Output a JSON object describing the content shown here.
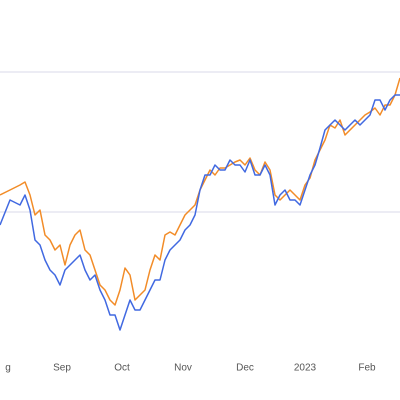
{
  "chart_data": {
    "type": "line",
    "x": [
      0,
      10,
      20,
      25,
      30,
      35,
      40,
      45,
      50,
      55,
      60,
      65,
      70,
      75,
      80,
      85,
      90,
      95,
      100,
      105,
      110,
      115,
      120,
      125,
      130,
      135,
      140,
      145,
      150,
      155,
      160,
      165,
      170,
      175,
      180,
      185,
      190,
      195,
      200,
      205,
      210,
      215,
      220,
      225,
      230,
      235,
      240,
      245,
      250,
      255,
      260,
      265,
      270,
      275,
      280,
      285,
      290,
      295,
      300,
      305,
      310,
      315,
      320,
      325,
      330,
      335,
      340,
      345,
      350,
      355,
      360,
      365,
      370,
      375,
      380,
      385,
      390,
      395,
      400
    ],
    "series": [
      {
        "color": "#f28c28",
        "values": [
          205,
          210,
          215,
          218,
          205,
          185,
          190,
          165,
          160,
          150,
          155,
          135,
          155,
          165,
          170,
          150,
          145,
          130,
          115,
          110,
          100,
          95,
          110,
          132,
          125,
          100,
          105,
          110,
          130,
          145,
          140,
          165,
          168,
          165,
          175,
          185,
          190,
          195,
          210,
          220,
          230,
          225,
          232,
          232,
          235,
          238,
          240,
          235,
          242,
          230,
          225,
          238,
          230,
          205,
          200,
          205,
          210,
          205,
          200,
          215,
          222,
          240,
          250,
          260,
          275,
          272,
          280,
          265,
          270,
          275,
          280,
          285,
          288,
          292,
          285,
          295,
          295,
          305,
          322
        ]
      },
      {
        "color": "#4169e1",
        "values": [
          175,
          200,
          195,
          205,
          190,
          160,
          155,
          140,
          130,
          125,
          115,
          130,
          135,
          140,
          145,
          130,
          120,
          125,
          110,
          100,
          85,
          85,
          70,
          85,
          100,
          90,
          90,
          100,
          110,
          120,
          120,
          140,
          150,
          155,
          160,
          170,
          175,
          185,
          210,
          225,
          225,
          235,
          230,
          230,
          240,
          235,
          235,
          228,
          240,
          225,
          225,
          235,
          225,
          195,
          205,
          210,
          200,
          200,
          195,
          210,
          225,
          235,
          252,
          270,
          275,
          280,
          275,
          270,
          275,
          280,
          275,
          280,
          285,
          300,
          300,
          290,
          300,
          305,
          305
        ]
      }
    ],
    "xlim": [
      0,
      400
    ],
    "ylim": [
      0,
      400
    ],
    "xticks": [
      {
        "value": 8,
        "label": "g"
      },
      {
        "value": 62,
        "label": "Sep"
      },
      {
        "value": 122,
        "label": "Oct"
      },
      {
        "value": 183,
        "label": "Nov"
      },
      {
        "value": 245,
        "label": "Dec"
      },
      {
        "value": 305,
        "label": "2023"
      },
      {
        "value": 367,
        "label": "Feb"
      }
    ],
    "yticks": [
      188,
      328
    ],
    "grid": true
  }
}
